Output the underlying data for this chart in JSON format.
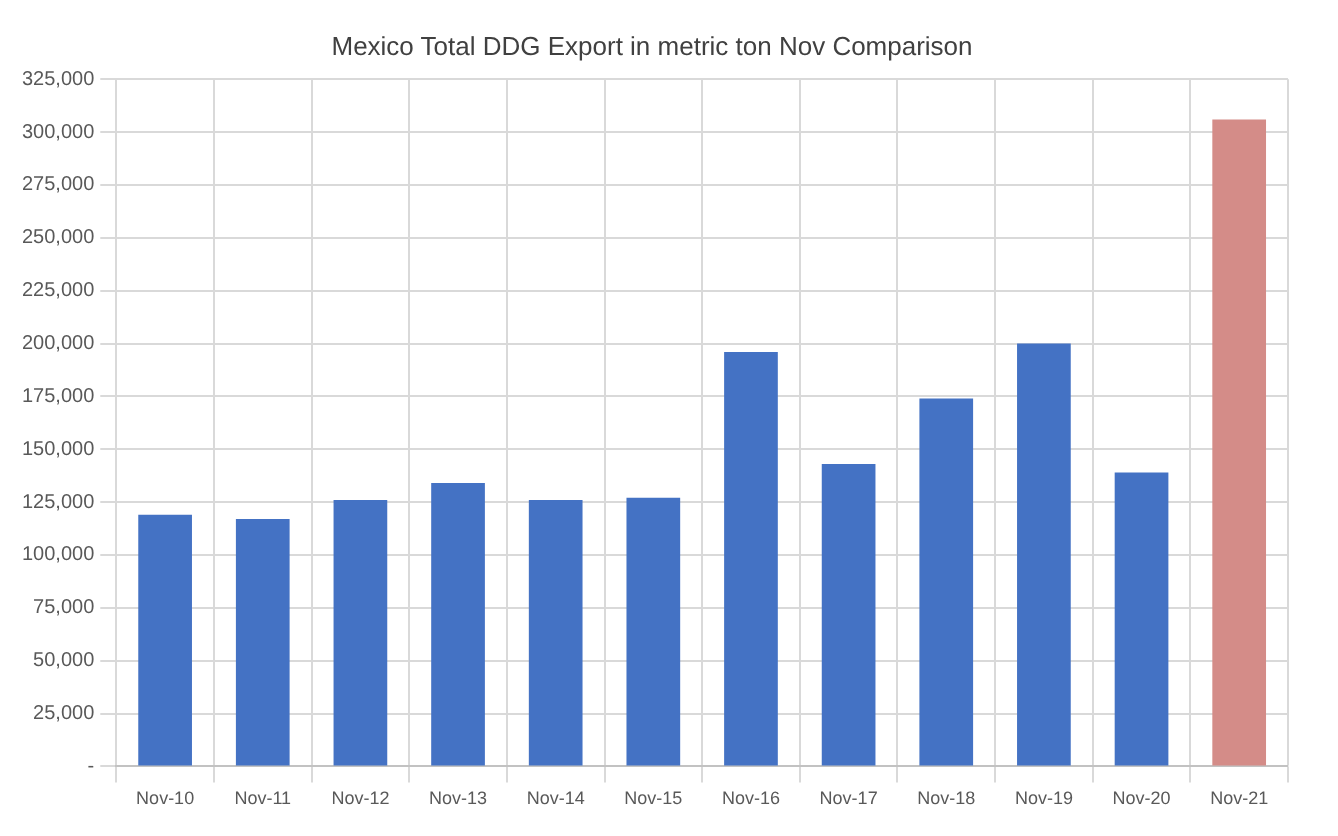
{
  "chart_data": {
    "type": "bar",
    "title": "Mexico Total DDG Export in metric ton Nov Comparison",
    "categories": [
      "Nov-10",
      "Nov-11",
      "Nov-12",
      "Nov-13",
      "Nov-14",
      "Nov-15",
      "Nov-16",
      "Nov-17",
      "Nov-18",
      "Nov-19",
      "Nov-20",
      "Nov-21"
    ],
    "values": [
      119000,
      117000,
      126000,
      134000,
      126000,
      127000,
      196000,
      143000,
      174000,
      200000,
      139000,
      306000
    ],
    "colors": [
      "#4472c4",
      "#4472c4",
      "#4472c4",
      "#4472c4",
      "#4472c4",
      "#4472c4",
      "#4472c4",
      "#4472c4",
      "#4472c4",
      "#4472c4",
      "#4472c4",
      "#d48c88"
    ],
    "ylim": [
      0,
      325000
    ],
    "yticks": [
      {
        "value": 0,
        "label": "-"
      },
      {
        "value": 25000,
        "label": "25,000"
      },
      {
        "value": 50000,
        "label": "50,000"
      },
      {
        "value": 75000,
        "label": "75,000"
      },
      {
        "value": 100000,
        "label": "100,000"
      },
      {
        "value": 125000,
        "label": "125,000"
      },
      {
        "value": 150000,
        "label": "150,000"
      },
      {
        "value": 175000,
        "label": "175,000"
      },
      {
        "value": 200000,
        "label": "200,000"
      },
      {
        "value": 225000,
        "label": "225,000"
      },
      {
        "value": 250000,
        "label": "250,000"
      },
      {
        "value": 275000,
        "label": "275,000"
      },
      {
        "value": 300000,
        "label": "300,000"
      },
      {
        "value": 325000,
        "label": "325,000"
      }
    ],
    "grid": true
  }
}
